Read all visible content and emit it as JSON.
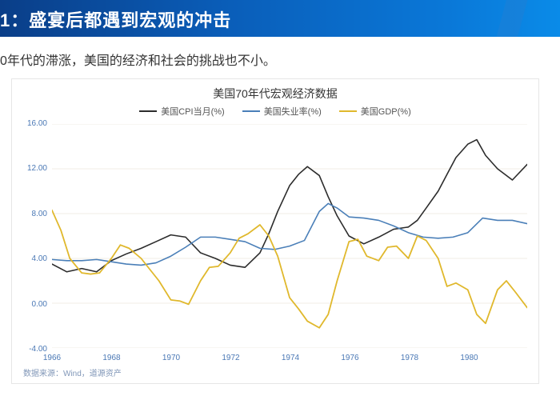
{
  "banner": {
    "title_prefix": "1：",
    "title": "盛宴后都遇到宏观的冲击"
  },
  "subtitle": "0年代的滞涨，美国的经济和社会的挑战也不小。",
  "chart": {
    "type": "line",
    "title": "美国70年代宏观经济数据",
    "title_fontsize": 14,
    "legend_fontsize": 11,
    "axis_label_color": "#4a78b5",
    "axis_label_fontsize": 10,
    "background_color": "#ffffff",
    "grid_color": "#f0ece5",
    "grid_width": 1,
    "x_axis": {
      "min": 1966,
      "max": 1982,
      "ticks": [
        1966,
        1968,
        1970,
        1972,
        1974,
        1976,
        1978,
        1980
      ]
    },
    "y_axis": {
      "min": -4.0,
      "max": 16.0,
      "ticks": [
        -4.0,
        0.0,
        4.0,
        8.0,
        12.0,
        16.0
      ],
      "tick_labels": [
        "-4.00",
        "0.00",
        "4.00",
        "8.00",
        "12.00",
        "16.00"
      ]
    },
    "series": [
      {
        "name": "美国CPI当月(%)",
        "color": "#2c2c2c",
        "width": 1.6,
        "data": [
          [
            1966.0,
            3.5
          ],
          [
            1966.5,
            2.8
          ],
          [
            1967.0,
            3.1
          ],
          [
            1967.5,
            2.8
          ],
          [
            1968.0,
            3.8
          ],
          [
            1968.5,
            4.4
          ],
          [
            1969.0,
            4.9
          ],
          [
            1969.5,
            5.5
          ],
          [
            1970.0,
            6.1
          ],
          [
            1970.5,
            5.9
          ],
          [
            1971.0,
            4.5
          ],
          [
            1971.5,
            4.0
          ],
          [
            1972.0,
            3.4
          ],
          [
            1972.5,
            3.2
          ],
          [
            1973.0,
            4.5
          ],
          [
            1973.3,
            6.2
          ],
          [
            1973.6,
            8.2
          ],
          [
            1974.0,
            10.5
          ],
          [
            1974.3,
            11.5
          ],
          [
            1974.6,
            12.2
          ],
          [
            1975.0,
            11.4
          ],
          [
            1975.3,
            9.5
          ],
          [
            1975.6,
            7.8
          ],
          [
            1976.0,
            6.0
          ],
          [
            1976.5,
            5.3
          ],
          [
            1977.0,
            5.9
          ],
          [
            1977.5,
            6.6
          ],
          [
            1978.0,
            6.8
          ],
          [
            1978.3,
            7.4
          ],
          [
            1978.6,
            8.5
          ],
          [
            1979.0,
            10.0
          ],
          [
            1979.3,
            11.5
          ],
          [
            1979.6,
            13.0
          ],
          [
            1980.0,
            14.2
          ],
          [
            1980.3,
            14.6
          ],
          [
            1980.6,
            13.2
          ],
          [
            1981.0,
            12.0
          ],
          [
            1981.5,
            11.0
          ],
          [
            1982.0,
            12.4
          ]
        ]
      },
      {
        "name": "美国失业率(%)",
        "color": "#4a7fb8",
        "width": 1.6,
        "data": [
          [
            1966.0,
            3.9
          ],
          [
            1966.5,
            3.8
          ],
          [
            1967.0,
            3.8
          ],
          [
            1967.5,
            3.9
          ],
          [
            1968.0,
            3.7
          ],
          [
            1968.5,
            3.5
          ],
          [
            1969.0,
            3.4
          ],
          [
            1969.5,
            3.6
          ],
          [
            1970.0,
            4.2
          ],
          [
            1970.5,
            5.0
          ],
          [
            1971.0,
            5.9
          ],
          [
            1971.5,
            5.9
          ],
          [
            1972.0,
            5.7
          ],
          [
            1972.5,
            5.5
          ],
          [
            1973.0,
            4.9
          ],
          [
            1973.5,
            4.8
          ],
          [
            1974.0,
            5.1
          ],
          [
            1974.5,
            5.6
          ],
          [
            1975.0,
            8.2
          ],
          [
            1975.3,
            8.9
          ],
          [
            1975.6,
            8.5
          ],
          [
            1976.0,
            7.7
          ],
          [
            1976.5,
            7.6
          ],
          [
            1977.0,
            7.4
          ],
          [
            1977.5,
            6.9
          ],
          [
            1978.0,
            6.3
          ],
          [
            1978.5,
            5.9
          ],
          [
            1979.0,
            5.8
          ],
          [
            1979.5,
            5.9
          ],
          [
            1980.0,
            6.3
          ],
          [
            1980.5,
            7.6
          ],
          [
            1981.0,
            7.4
          ],
          [
            1981.5,
            7.4
          ],
          [
            1982.0,
            7.1
          ]
        ]
      },
      {
        "name": "美国GDP(%)",
        "color": "#e0b82c",
        "width": 1.8,
        "data": [
          [
            1966.0,
            8.3
          ],
          [
            1966.3,
            6.5
          ],
          [
            1966.6,
            4.0
          ],
          [
            1967.0,
            2.7
          ],
          [
            1967.3,
            2.6
          ],
          [
            1967.6,
            2.7
          ],
          [
            1968.0,
            4.0
          ],
          [
            1968.3,
            5.2
          ],
          [
            1968.6,
            4.9
          ],
          [
            1969.0,
            4.0
          ],
          [
            1969.3,
            3.0
          ],
          [
            1969.6,
            2.0
          ],
          [
            1970.0,
            0.3
          ],
          [
            1970.3,
            0.2
          ],
          [
            1970.6,
            -0.1
          ],
          [
            1971.0,
            2.0
          ],
          [
            1971.3,
            3.2
          ],
          [
            1971.6,
            3.3
          ],
          [
            1972.0,
            4.5
          ],
          [
            1972.3,
            5.8
          ],
          [
            1972.6,
            6.2
          ],
          [
            1973.0,
            7.0
          ],
          [
            1973.3,
            6.0
          ],
          [
            1973.6,
            4.2
          ],
          [
            1974.0,
            0.5
          ],
          [
            1974.3,
            -0.5
          ],
          [
            1974.6,
            -1.6
          ],
          [
            1975.0,
            -2.2
          ],
          [
            1975.3,
            -1.0
          ],
          [
            1975.6,
            2.0
          ],
          [
            1976.0,
            5.5
          ],
          [
            1976.3,
            5.7
          ],
          [
            1976.6,
            4.2
          ],
          [
            1977.0,
            3.8
          ],
          [
            1977.3,
            5.0
          ],
          [
            1977.6,
            5.1
          ],
          [
            1978.0,
            4.0
          ],
          [
            1978.3,
            6.0
          ],
          [
            1978.6,
            5.6
          ],
          [
            1979.0,
            4.0
          ],
          [
            1979.3,
            1.5
          ],
          [
            1979.6,
            1.8
          ],
          [
            1980.0,
            1.2
          ],
          [
            1980.3,
            -1.0
          ],
          [
            1980.6,
            -1.8
          ],
          [
            1981.0,
            1.2
          ],
          [
            1981.3,
            2.0
          ],
          [
            1981.6,
            1.0
          ],
          [
            1982.0,
            -0.4
          ]
        ]
      }
    ],
    "source": "数据来源：Wind，道源资产"
  }
}
